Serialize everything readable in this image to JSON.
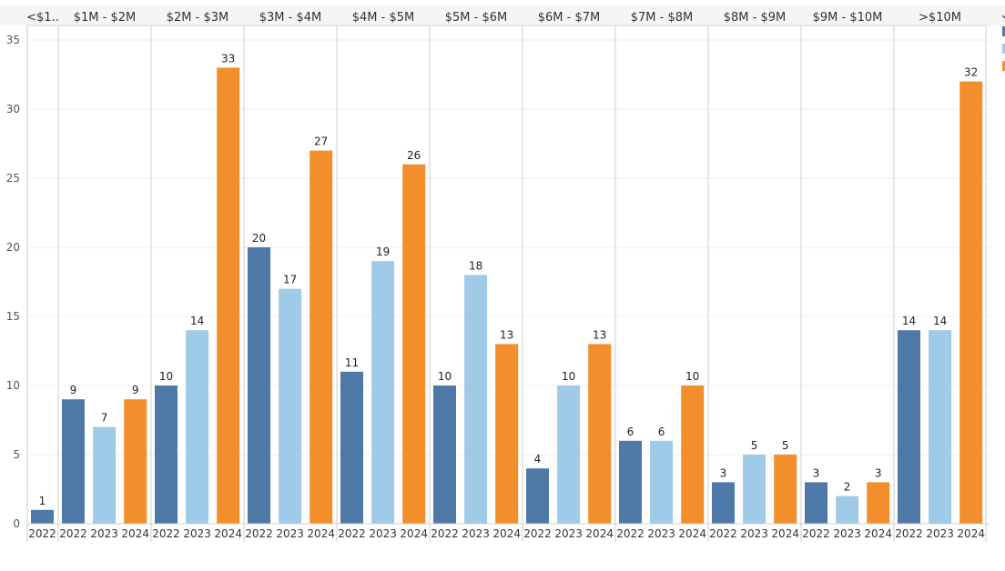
{
  "chart_data": {
    "type": "bar",
    "groups": [
      "<$1..",
      "$1M - $2M",
      "$2M - $3M",
      "$3M - $4M",
      "$4M - $5M",
      "$5M - $6M",
      "$6M - $7M",
      "$7M - $8M",
      "$8M - $9M",
      "$9M - $10M",
      ">$10M"
    ],
    "group_years": [
      [
        "2022"
      ],
      [
        "2022",
        "2023",
        "2024"
      ],
      [
        "2022",
        "2023",
        "2024"
      ],
      [
        "2022",
        "2023",
        "2024"
      ],
      [
        "2022",
        "2023",
        "2024"
      ],
      [
        "2022",
        "2023",
        "2024"
      ],
      [
        "2022",
        "2023",
        "2024"
      ],
      [
        "2022",
        "2023",
        "2024"
      ],
      [
        "2022",
        "2023",
        "2024"
      ],
      [
        "2022",
        "2023",
        "2024"
      ],
      [
        "2022",
        "2023",
        "2024"
      ]
    ],
    "group_values": [
      [
        1
      ],
      [
        9,
        7,
        9
      ],
      [
        10,
        14,
        33
      ],
      [
        20,
        17,
        27
      ],
      [
        11,
        19,
        26
      ],
      [
        10,
        18,
        13
      ],
      [
        4,
        10,
        13
      ],
      [
        6,
        6,
        10
      ],
      [
        3,
        5,
        5
      ],
      [
        3,
        2,
        3
      ],
      [
        14,
        14,
        32
      ]
    ],
    "series_colors": {
      "2022": "#4e79a7",
      "2023": "#a0cbe8",
      "2024": "#f28e2b"
    },
    "y_ticks": [
      0,
      5,
      10,
      15,
      20,
      25,
      30,
      35
    ],
    "ylim": [
      0,
      36
    ],
    "grid": true,
    "legend": "top-right (partially cut off)"
  }
}
